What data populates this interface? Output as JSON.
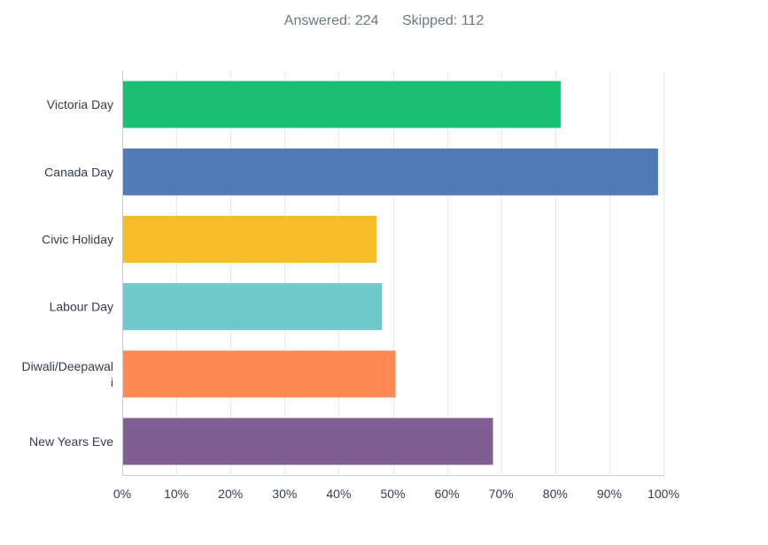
{
  "summary": {
    "answered_label": "Answered:",
    "answered_value": "224",
    "skipped_label": "Skipped:",
    "skipped_value": "112"
  },
  "chart_data": {
    "type": "bar",
    "orientation": "horizontal",
    "categories": [
      "Victoria Day",
      "Canada Day",
      "Civic Holiday",
      "Labour Day",
      "Diwali/Deepawali",
      "New Years Eve"
    ],
    "category_label_lines": [
      [
        "Victoria Day"
      ],
      [
        "Canada Day"
      ],
      [
        "Civic Holiday"
      ],
      [
        "Labour Day"
      ],
      [
        "Diwali/Deepawal",
        "i"
      ],
      [
        "New Years Eve"
      ]
    ],
    "values": [
      81,
      99,
      47,
      48,
      50.5,
      68.5
    ],
    "colors": [
      "#1bbf72",
      "#507cb6",
      "#f7bc27",
      "#6fc8cb",
      "#ff8b52",
      "#7f5f91"
    ],
    "xlim": [
      0,
      100
    ],
    "xticks": [
      0,
      10,
      20,
      30,
      40,
      50,
      60,
      70,
      80,
      90,
      100
    ],
    "xtick_labels": [
      "0%",
      "10%",
      "20%",
      "30%",
      "40%",
      "50%",
      "60%",
      "70%",
      "80%",
      "90%",
      "100%"
    ],
    "grid": true,
    "title": "",
    "xlabel": "",
    "ylabel": ""
  }
}
